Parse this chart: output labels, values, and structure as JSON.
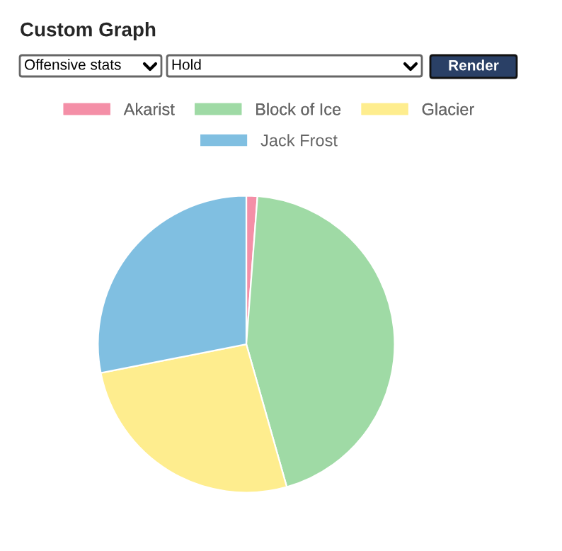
{
  "chart_data": {
    "type": "pie",
    "title": "Custom Graph",
    "categories": [
      "Akarist",
      "Block of Ice",
      "Glacier",
      "Jack Frost"
    ],
    "values": [
      1.2,
      44.4,
      26.3,
      28.1
    ],
    "colors": [
      "#f48fa7",
      "#9fdaa5",
      "#feed8e",
      "#80bfe1"
    ],
    "legend": "top",
    "annotations": [
      "Offensive stats",
      "Hold",
      "Render"
    ]
  }
}
